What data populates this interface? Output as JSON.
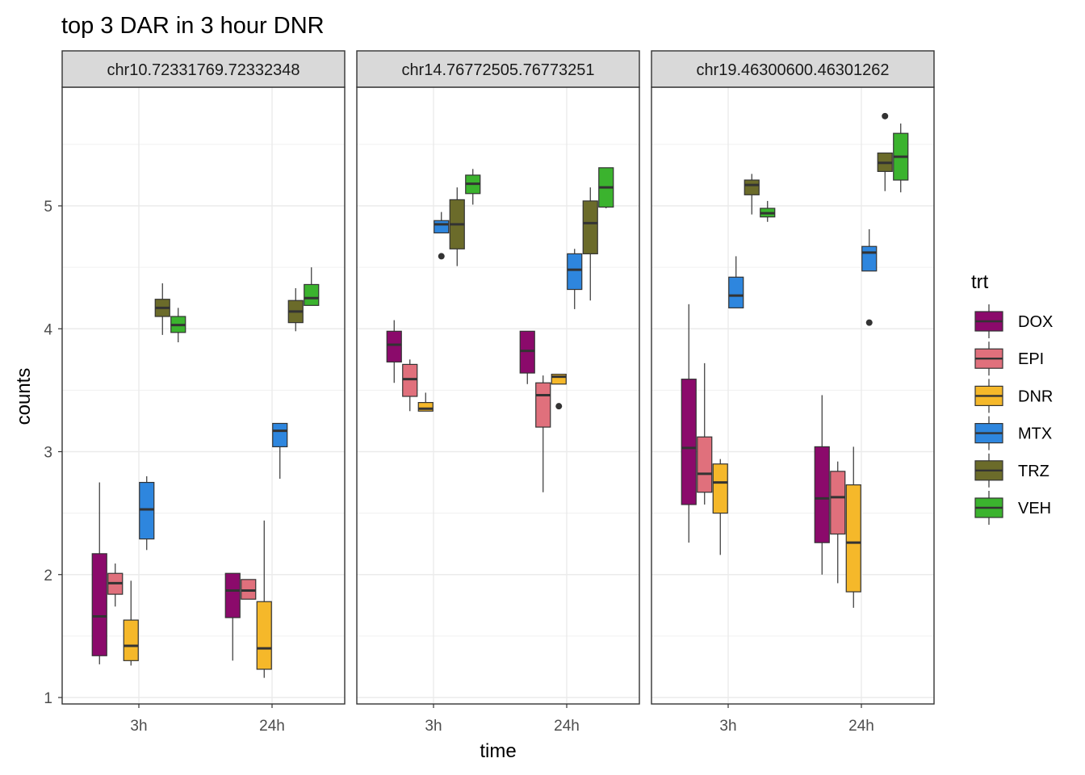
{
  "chart_data": {
    "type": "box",
    "title": "top 3 DAR in 3 hour DNR",
    "xlabel": "time",
    "ylabel": "counts",
    "ylim": [
      0.92,
      5.95
    ],
    "y_ticks": [
      1,
      2,
      3,
      4,
      5
    ],
    "x_categories": [
      "3h",
      "24h"
    ],
    "legend": {
      "title": "trt",
      "position": "right",
      "items": [
        {
          "name": "DOX",
          "color": "#8B0A6B"
        },
        {
          "name": "EPI",
          "color": "#E0707C"
        },
        {
          "name": "DNR",
          "color": "#F5B82A"
        },
        {
          "name": "MTX",
          "color": "#2E86DE"
        },
        {
          "name": "TRZ",
          "color": "#6B6B2A"
        },
        {
          "name": "VEH",
          "color": "#3BB32E"
        }
      ]
    },
    "grid": true,
    "panels": [
      {
        "strip": "chr10.72331769.72332348",
        "boxes": [
          {
            "time": "3h",
            "trt": "DOX",
            "min": 1.27,
            "q1": 1.34,
            "median": 1.66,
            "q3": 2.17,
            "max": 2.75,
            "outliers": []
          },
          {
            "time": "3h",
            "trt": "EPI",
            "min": 1.74,
            "q1": 1.84,
            "median": 1.93,
            "q3": 2.01,
            "max": 2.09,
            "outliers": []
          },
          {
            "time": "3h",
            "trt": "DNR",
            "min": 1.26,
            "q1": 1.3,
            "median": 1.42,
            "q3": 1.63,
            "max": 1.95,
            "outliers": []
          },
          {
            "time": "3h",
            "trt": "MTX",
            "min": 2.2,
            "q1": 2.29,
            "median": 2.53,
            "q3": 2.75,
            "max": 2.8,
            "outliers": []
          },
          {
            "time": "3h",
            "trt": "TRZ",
            "min": 3.95,
            "q1": 4.1,
            "median": 4.17,
            "q3": 4.24,
            "max": 4.37,
            "outliers": []
          },
          {
            "time": "3h",
            "trt": "VEH",
            "min": 3.89,
            "q1": 3.97,
            "median": 4.03,
            "q3": 4.1,
            "max": 4.17,
            "outliers": []
          },
          {
            "time": "24h",
            "trt": "DOX",
            "min": 1.3,
            "q1": 1.65,
            "median": 1.87,
            "q3": 2.01,
            "max": 2.01,
            "outliers": []
          },
          {
            "time": "24h",
            "trt": "EPI",
            "min": 1.8,
            "q1": 1.8,
            "median": 1.87,
            "q3": 1.96,
            "max": 1.96,
            "outliers": []
          },
          {
            "time": "24h",
            "trt": "DNR",
            "min": 1.16,
            "q1": 1.23,
            "median": 1.4,
            "q3": 1.78,
            "max": 2.44,
            "outliers": []
          },
          {
            "time": "24h",
            "trt": "MTX",
            "min": 2.78,
            "q1": 3.04,
            "median": 3.17,
            "q3": 3.23,
            "max": 3.23,
            "outliers": []
          },
          {
            "time": "24h",
            "trt": "TRZ",
            "min": 3.98,
            "q1": 4.05,
            "median": 4.14,
            "q3": 4.23,
            "max": 4.33,
            "outliers": []
          },
          {
            "time": "24h",
            "trt": "VEH",
            "min": 4.19,
            "q1": 4.19,
            "median": 4.25,
            "q3": 4.36,
            "max": 4.5,
            "outliers": []
          }
        ]
      },
      {
        "strip": "chr14.76772505.76773251",
        "boxes": [
          {
            "time": "3h",
            "trt": "DOX",
            "min": 3.56,
            "q1": 3.73,
            "median": 3.87,
            "q3": 3.98,
            "max": 4.07,
            "outliers": []
          },
          {
            "time": "3h",
            "trt": "EPI",
            "min": 3.33,
            "q1": 3.45,
            "median": 3.59,
            "q3": 3.71,
            "max": 3.75,
            "outliers": []
          },
          {
            "time": "3h",
            "trt": "DNR",
            "min": 3.33,
            "q1": 3.33,
            "median": 3.35,
            "q3": 3.4,
            "max": 3.48,
            "outliers": []
          },
          {
            "time": "3h",
            "trt": "MTX",
            "min": 4.78,
            "q1": 4.78,
            "median": 4.85,
            "q3": 4.88,
            "max": 4.95,
            "outliers": [
              4.59
            ]
          },
          {
            "time": "3h",
            "trt": "TRZ",
            "min": 4.51,
            "q1": 4.65,
            "median": 4.85,
            "q3": 5.05,
            "max": 5.15,
            "outliers": []
          },
          {
            "time": "3h",
            "trt": "VEH",
            "min": 5.01,
            "q1": 5.1,
            "median": 5.18,
            "q3": 5.25,
            "max": 5.3,
            "outliers": []
          },
          {
            "time": "24h",
            "trt": "DOX",
            "min": 3.55,
            "q1": 3.64,
            "median": 3.82,
            "q3": 3.98,
            "max": 3.98,
            "outliers": []
          },
          {
            "time": "24h",
            "trt": "EPI",
            "min": 2.67,
            "q1": 3.2,
            "median": 3.46,
            "q3": 3.56,
            "max": 3.62,
            "outliers": []
          },
          {
            "time": "24h",
            "trt": "DNR",
            "min": 3.55,
            "q1": 3.55,
            "median": 3.61,
            "q3": 3.63,
            "max": 3.63,
            "outliers": [
              3.37
            ]
          },
          {
            "time": "24h",
            "trt": "MTX",
            "min": 4.16,
            "q1": 4.32,
            "median": 4.48,
            "q3": 4.61,
            "max": 4.65,
            "outliers": []
          },
          {
            "time": "24h",
            "trt": "TRZ",
            "min": 4.23,
            "q1": 4.61,
            "median": 4.86,
            "q3": 5.04,
            "max": 5.15,
            "outliers": []
          },
          {
            "time": "24h",
            "trt": "VEH",
            "min": 4.98,
            "q1": 4.99,
            "median": 5.15,
            "q3": 5.31,
            "max": 5.31,
            "outliers": []
          }
        ]
      },
      {
        "strip": "chr19.46300600.46301262",
        "boxes": [
          {
            "time": "3h",
            "trt": "DOX",
            "min": 2.26,
            "q1": 2.57,
            "median": 3.03,
            "q3": 3.59,
            "max": 4.2,
            "outliers": []
          },
          {
            "time": "3h",
            "trt": "EPI",
            "min": 2.57,
            "q1": 2.67,
            "median": 2.82,
            "q3": 3.12,
            "max": 3.72,
            "outliers": []
          },
          {
            "time": "3h",
            "trt": "DNR",
            "min": 2.16,
            "q1": 2.5,
            "median": 2.75,
            "q3": 2.9,
            "max": 2.94,
            "outliers": []
          },
          {
            "time": "3h",
            "trt": "MTX",
            "min": 4.17,
            "q1": 4.17,
            "median": 4.27,
            "q3": 4.42,
            "max": 4.59,
            "outliers": []
          },
          {
            "time": "3h",
            "trt": "TRZ",
            "min": 4.93,
            "q1": 5.09,
            "median": 5.17,
            "q3": 5.21,
            "max": 5.26,
            "outliers": []
          },
          {
            "time": "3h",
            "trt": "VEH",
            "min": 4.87,
            "q1": 4.91,
            "median": 4.94,
            "q3": 4.98,
            "max": 5.04,
            "outliers": []
          },
          {
            "time": "24h",
            "trt": "DOX",
            "min": 2.0,
            "q1": 2.26,
            "median": 2.62,
            "q3": 3.04,
            "max": 3.46,
            "outliers": []
          },
          {
            "time": "24h",
            "trt": "EPI",
            "min": 1.93,
            "q1": 2.33,
            "median": 2.63,
            "q3": 2.84,
            "max": 2.92,
            "outliers": []
          },
          {
            "time": "24h",
            "trt": "DNR",
            "min": 1.73,
            "q1": 1.86,
            "median": 2.26,
            "q3": 2.73,
            "max": 3.04,
            "outliers": []
          },
          {
            "time": "24h",
            "trt": "MTX",
            "min": 4.47,
            "q1": 4.47,
            "median": 4.62,
            "q3": 4.67,
            "max": 4.81,
            "outliers": [
              4.05
            ]
          },
          {
            "time": "24h",
            "trt": "TRZ",
            "min": 5.12,
            "q1": 5.28,
            "median": 5.35,
            "q3": 5.43,
            "max": 5.43,
            "outliers": [
              5.73
            ]
          },
          {
            "time": "24h",
            "trt": "VEH",
            "min": 5.11,
            "q1": 5.21,
            "median": 5.4,
            "q3": 5.59,
            "max": 5.67,
            "outliers": []
          }
        ]
      }
    ]
  }
}
